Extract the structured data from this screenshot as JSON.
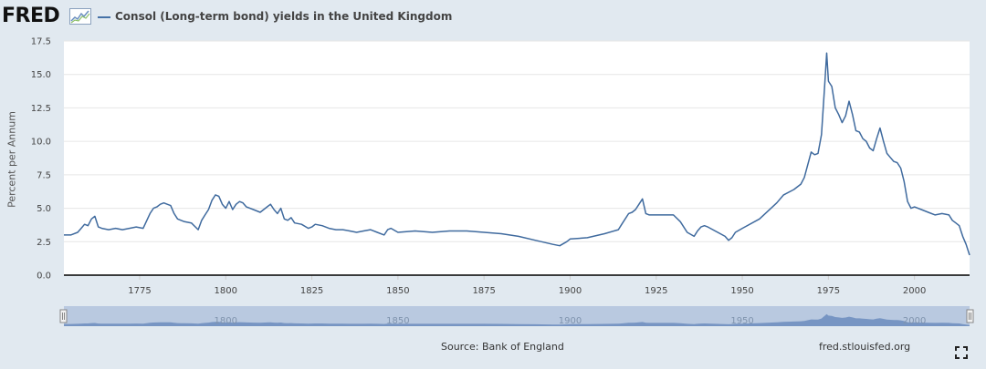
{
  "header": {
    "logo_text": "FRED",
    "series_title": "Consol (Long-term bond) yields in the United Kingdom"
  },
  "footer": {
    "source": "Source: Bank of England",
    "site": "fred.stlouisfed.org"
  },
  "colors": {
    "line": "#3f6a9e",
    "navigator_fill": "#6b8cbd",
    "navigator_bg": "#b9c9e0",
    "background": "#e1e9f0"
  },
  "chart_data": {
    "type": "line",
    "title": "Consol (Long-term bond) yields in the United Kingdom",
    "xlabel": "",
    "ylabel": "Percent per Annum",
    "xlim": [
      1753,
      2016
    ],
    "ylim": [
      0,
      17.5
    ],
    "x_ticks": [
      "1775",
      "1800",
      "1825",
      "1850",
      "1875",
      "1900",
      "1925",
      "1950",
      "1975",
      "2000"
    ],
    "y_ticks": [
      "0.0",
      "2.5",
      "5.0",
      "7.5",
      "10.0",
      "12.5",
      "15.0",
      "17.5"
    ],
    "navigator_ticks": [
      "1800",
      "1850",
      "1900",
      "1950",
      "2000"
    ],
    "series": [
      {
        "name": "Consol (Long-term bond) yields in the United Kingdom",
        "x": [
          1753,
          1755,
          1757,
          1758,
          1759,
          1760,
          1761,
          1762,
          1763,
          1764,
          1766,
          1768,
          1770,
          1772,
          1774,
          1776,
          1778,
          1779,
          1780,
          1781,
          1782,
          1783,
          1784,
          1785,
          1786,
          1787,
          1788,
          1790,
          1792,
          1793,
          1794,
          1795,
          1796,
          1797,
          1798,
          1799,
          1800,
          1801,
          1802,
          1803,
          1804,
          1805,
          1806,
          1808,
          1810,
          1812,
          1813,
          1814,
          1815,
          1816,
          1817,
          1818,
          1819,
          1820,
          1822,
          1824,
          1825,
          1826,
          1828,
          1830,
          1832,
          1834,
          1836,
          1838,
          1840,
          1842,
          1844,
          1846,
          1847,
          1848,
          1850,
          1855,
          1860,
          1865,
          1870,
          1875,
          1880,
          1885,
          1890,
          1895,
          1897,
          1899,
          1900,
          1905,
          1910,
          1914,
          1915,
          1917,
          1918,
          1919,
          1920,
          1921,
          1922,
          1923,
          1925,
          1930,
          1932,
          1934,
          1936,
          1937,
          1938,
          1939,
          1940,
          1945,
          1946,
          1947,
          1948,
          1950,
          1955,
          1960,
          1962,
          1965,
          1967,
          1968,
          1970,
          1971,
          1972,
          1973,
          1974,
          1974.5,
          1975,
          1976,
          1977,
          1978,
          1979,
          1980,
          1981,
          1982,
          1983,
          1984,
          1985,
          1986,
          1987,
          1988,
          1989,
          1990,
          1991,
          1992,
          1993,
          1994,
          1995,
          1996,
          1997,
          1998,
          1999,
          2000,
          2002,
          2004,
          2006,
          2008,
          2010,
          2011,
          2012,
          2013,
          2014,
          2015,
          2016
        ],
        "values": [
          3.0,
          3.0,
          3.2,
          3.5,
          3.8,
          3.7,
          4.2,
          4.4,
          3.6,
          3.5,
          3.4,
          3.5,
          3.4,
          3.5,
          3.6,
          3.5,
          4.6,
          5.0,
          5.1,
          5.3,
          5.4,
          5.3,
          5.2,
          4.6,
          4.2,
          4.1,
          4.0,
          3.9,
          3.4,
          4.1,
          4.5,
          4.9,
          5.6,
          6.0,
          5.9,
          5.3,
          5.0,
          5.5,
          4.9,
          5.3,
          5.5,
          5.4,
          5.1,
          4.9,
          4.7,
          5.1,
          5.3,
          4.9,
          4.6,
          5.0,
          4.2,
          4.1,
          4.3,
          3.9,
          3.8,
          3.5,
          3.6,
          3.8,
          3.7,
          3.5,
          3.4,
          3.4,
          3.3,
          3.2,
          3.3,
          3.4,
          3.2,
          3.0,
          3.4,
          3.5,
          3.2,
          3.3,
          3.2,
          3.3,
          3.3,
          3.2,
          3.1,
          2.9,
          2.6,
          2.3,
          2.2,
          2.5,
          2.7,
          2.8,
          3.1,
          3.4,
          3.8,
          4.6,
          4.7,
          4.9,
          5.3,
          5.7,
          4.6,
          4.5,
          4.5,
          4.5,
          4.0,
          3.2,
          2.9,
          3.3,
          3.6,
          3.7,
          3.6,
          2.9,
          2.6,
          2.8,
          3.2,
          3.5,
          4.2,
          5.4,
          6.0,
          6.4,
          6.8,
          7.3,
          9.2,
          9.0,
          9.1,
          10.5,
          14.5,
          16.6,
          14.5,
          14.1,
          12.5,
          12.0,
          11.4,
          11.9,
          13.0,
          12.0,
          10.8,
          10.7,
          10.2,
          10.0,
          9.5,
          9.3,
          10.2,
          11.0,
          10.0,
          9.1,
          8.8,
          8.5,
          8.4,
          8.0,
          7.0,
          5.5,
          5.0,
          5.1,
          4.9,
          4.7,
          4.5,
          4.6,
          4.5,
          4.1,
          3.9,
          3.7,
          2.9,
          2.3,
          1.5
        ]
      }
    ]
  }
}
